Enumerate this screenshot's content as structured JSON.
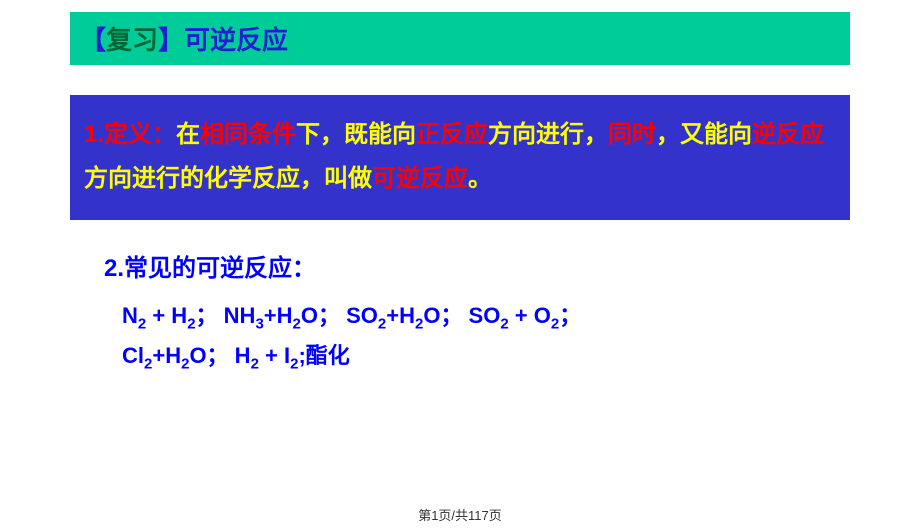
{
  "header": {
    "bracket_open": "【",
    "label": "复习",
    "bracket_close": "】",
    "title": "可逆反应"
  },
  "definition": {
    "num": "1.定义：",
    "t1": "在",
    "t2": "相同条件",
    "t3": "下，既能向",
    "t4": "正反应",
    "t5": "方向进行，",
    "t6": "同时",
    "t7": "，又能向",
    "t8": "逆反应",
    "t9": "方向进行的化学反应，叫做",
    "t10": "可逆反应",
    "t11": "。"
  },
  "section2": {
    "title": "2.常见的可逆反应："
  },
  "reactions": {
    "line1_a": "N",
    "line1_b": " + H",
    "line1_c": "；  NH",
    "line1_d": "+H",
    "line1_e": "O；  SO",
    "line1_f": "+H",
    "line1_g": "O；    SO",
    "line1_h": " + O",
    "line1_i": "；",
    "line2_a": "Cl",
    "line2_b": "+H",
    "line2_c": "O；  H",
    "line2_d": " + I",
    "line2_e": ";酯化",
    "sub2": "2",
    "sub3": "3"
  },
  "footer": {
    "text": "第1页/共117页"
  }
}
